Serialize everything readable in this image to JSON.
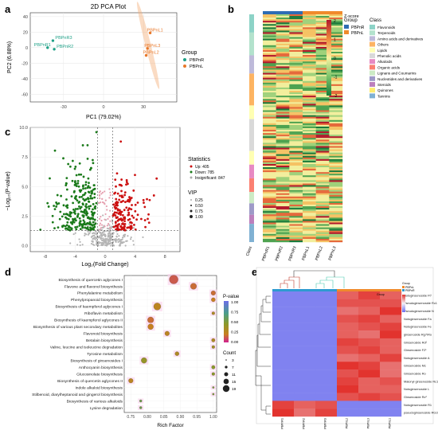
{
  "panels": {
    "a": "a",
    "b": "b",
    "c": "c",
    "d": "d",
    "e": "e"
  },
  "pca": {
    "title": "2D PCA Plot",
    "xlabel": "PC1 (79.02%)",
    "ylabel": "PC2 (6.88%)",
    "legend_title": "Group",
    "groups": [
      {
        "name": "PBPnR",
        "color": "#1fa187"
      },
      {
        "name": "PBPnL",
        "color": "#e8782a"
      }
    ],
    "x_ticks": [
      "-30",
      "0",
      "30"
    ],
    "y_ticks": [
      "40",
      "20",
      "0",
      "-20",
      "-40",
      "-60"
    ],
    "points": [
      {
        "label": "PBPnR3",
        "x": -38,
        "y": 9,
        "group": 0
      },
      {
        "label": "PBPnR1",
        "x": -42,
        "y": 0,
        "group": 0
      },
      {
        "label": "PBPnR2",
        "x": -37,
        "y": -2,
        "group": 0
      },
      {
        "label": "PBPnL1",
        "x": 35,
        "y": 19,
        "group": 1
      },
      {
        "label": "PBPnL3",
        "x": 33,
        "y": -1,
        "group": 1
      },
      {
        "label": "PBPnL2",
        "x": 32,
        "y": -10,
        "group": 1
      }
    ]
  },
  "heatmap": {
    "group_title": "Group",
    "groups": [
      {
        "name": "PBPnR",
        "color": "#2e6db4"
      },
      {
        "name": "PBPnL",
        "color": "#f08a2c"
      }
    ],
    "zscore_title": "Z-score",
    "zscore_ticks": [
      "2",
      "1",
      "0",
      "-1",
      "-2"
    ],
    "class_title": "Class",
    "classes": [
      {
        "name": "Flavonoids",
        "color": "#8dd3c7"
      },
      {
        "name": "Terpenoids",
        "color": "#b3e2cd"
      },
      {
        "name": "Amino acids and derivatives",
        "color": "#bebada"
      },
      {
        "name": "Others",
        "color": "#fdb462"
      },
      {
        "name": "Lipids",
        "color": "#ffffb3"
      },
      {
        "name": "Phenolic acids",
        "color": "#d9d9d9"
      },
      {
        "name": "Alkaloids",
        "color": "#e78ac3"
      },
      {
        "name": "Organic acids",
        "color": "#fb8072"
      },
      {
        "name": "Lignans and Coumarins",
        "color": "#ccebc5"
      },
      {
        "name": "Nucleotides and derivatives",
        "color": "#9e9ac8"
      },
      {
        "name": "Steroids",
        "color": "#bc80bd"
      },
      {
        "name": "Quinones",
        "color": "#ffed6f"
      },
      {
        "name": "Tannins",
        "color": "#80b1d3"
      }
    ],
    "col_labels": [
      "Class",
      "PBPnR1",
      "PBPnR2",
      "PBPnR3",
      "PBPnL1",
      "PBPnL2",
      "PBPnL3"
    ]
  },
  "volcano": {
    "xlabel": "Log₂(Fold Change)",
    "ylabel": "−Log₁₀(P-value)",
    "x_ticks": [
      "-8",
      "-4",
      "0",
      "4",
      "8"
    ],
    "y_ticks": [
      "10.0",
      "7.5",
      "5.0",
      "2.5",
      "0.0"
    ],
    "stats_title": "Statistics",
    "stats": [
      {
        "label": "Up: 405",
        "color": "#cc1111"
      },
      {
        "label": "Down: 785",
        "color": "#1a7a1a"
      },
      {
        "label": "Insignificant: 847",
        "color": "#aaaaaa"
      }
    ],
    "vip_title": "VIP",
    "vip": [
      "0.25",
      "0.50",
      "0.75",
      "1.00"
    ]
  },
  "chart_data": [
    {
      "type": "scatter",
      "title": "2D PCA Plot",
      "xlabel": "PC1 (79.02%)",
      "ylabel": "PC2 (6.88%)",
      "xlim": [
        -55,
        55
      ],
      "ylim": [
        -70,
        45
      ],
      "series": [
        {
          "name": "PBPnR",
          "x": [
            -38,
            -42,
            -37
          ],
          "y": [
            9,
            0,
            -2
          ]
        },
        {
          "name": "PBPnL",
          "x": [
            35,
            33,
            32
          ],
          "y": [
            19,
            -1,
            -10
          ]
        }
      ]
    },
    {
      "type": "scatter",
      "xlabel": "Log₂(Fold Change)",
      "ylabel": "−Log₁₀(P-value)",
      "xlim": [
        -10,
        10
      ],
      "ylim": [
        -0.5,
        10
      ],
      "thresholds": {
        "x": [
          -1,
          1
        ],
        "y": 1.3
      },
      "counts": {
        "up": 405,
        "down": 785,
        "insignificant": 847
      }
    },
    {
      "type": "scatter",
      "xlabel": "Rich Factor",
      "x_ticks": [
        "0.75",
        "0.80",
        "0.85",
        "0.90",
        "0.95",
        "1.00"
      ],
      "xlim": [
        0.73,
        1.01
      ],
      "pvalue_title": "P-value",
      "pvalue_ticks": [
        "1.00",
        "0.75",
        "0.50",
        "0.25",
        "0.00"
      ],
      "count_title": "Count",
      "count_ticks": [
        "3",
        "7",
        "11",
        "15",
        "19"
      ],
      "categories": [
        "Biosynthesis of quercetin aglycones I",
        "Flavone and flavonol biosynthesis",
        "Phenylalanine metabolism",
        "Phenylpropanoid biosynthesis",
        "Biosynthesis of kaempferol aglycones I",
        "Riboflavin metabolism",
        "Biosynthesis of kaempferol aglycones II",
        "Biosynthesis of various plant secondary metabolites",
        "Flavonoid biosynthesis",
        "Betalain biosynthesis",
        "Valine, leucine and isoleucine degradation",
        "Tyrosine metabolism",
        "Biosynthesis of ginsenosides I",
        "Anthocyanin biosynthesis",
        "Glucosinolate biosynthesis",
        "Biosynthesis of quercetin aglycones II",
        "Indole alkaloid biosynthesis",
        "Stilbenoid, diarylheptanoid and gingerol biosynthesis",
        "Biosynthesis of various alkaloids",
        "Lysine degradation"
      ],
      "rich": [
        0.88,
        0.94,
        1.0,
        1.0,
        0.83,
        1.0,
        0.81,
        0.81,
        0.86,
        1.0,
        1.0,
        0.89,
        0.79,
        1.0,
        1.0,
        0.75,
        1.0,
        1.0,
        0.78,
        0.78
      ],
      "count": [
        14,
        9,
        6,
        5,
        11,
        3,
        9,
        8,
        6,
        4,
        3,
        5,
        8,
        4,
        3,
        6,
        1,
        1,
        2,
        2
      ],
      "pvalue": [
        0.15,
        0.2,
        0.2,
        0.25,
        0.3,
        0.35,
        0.2,
        0.25,
        0.3,
        0.35,
        0.4,
        0.35,
        0.45,
        0.5,
        0.5,
        0.3,
        0.55,
        0.55,
        0.6,
        0.6
      ]
    }
  ],
  "clustermap": {
    "rows": [
      "Notoginsenoside Ft¹",
      "Pseudoginsenoside Rc1",
      "Pseudoginsenoside N",
      "Notoginsenoside Fa",
      "Notoginsenoside Fe",
      "ginsenoside Rg7/Ro",
      "Ginsenoside Rd²",
      "Ginsenoside F2¹",
      "Notoginsenoside A",
      "Ginsenoside Mc",
      "Ginsenoside Ro",
      "Malonyl ginsenoside Rc1",
      "Notoginsenoside L",
      "Ginsenoside Rc²",
      "Notoginsenoside R1",
      "pseudoginsenoside RG3"
    ],
    "cols": [
      "PBPnR1",
      "PBPnR2",
      "PBPnR3",
      "PBPnL2",
      "PBPnL3",
      "PBPnL1"
    ],
    "legend_title": "Group",
    "legend_items": [
      "PBPnL",
      "PBPnR"
    ],
    "values": [
      [
        -1,
        -1,
        -1,
        0.9,
        1.1,
        0.9
      ],
      [
        -1,
        -1,
        -1,
        1.0,
        1.0,
        1.0
      ],
      [
        -1,
        -1,
        -1,
        0.8,
        0.9,
        1.2
      ],
      [
        -1,
        -1,
        -1,
        1.0,
        1.1,
        0.9
      ],
      [
        -1,
        -1,
        -1,
        0.9,
        1.0,
        1.1
      ],
      [
        -1,
        -1,
        -1,
        0.9,
        0.8,
        1.2
      ],
      [
        -1,
        -1,
        -1,
        1.1,
        1.0,
        0.9
      ],
      [
        -1,
        -1,
        -1,
        1.0,
        1.1,
        0.9
      ],
      [
        -1,
        -1,
        -1,
        0.8,
        0.9,
        1.1
      ],
      [
        -1,
        -1,
        -1,
        1.2,
        1.1,
        0.8
      ],
      [
        -1,
        -1,
        -1,
        1.0,
        1.2,
        0.8
      ],
      [
        -1,
        -1,
        -1,
        1.1,
        0.9,
        1.0
      ],
      [
        -1,
        -1,
        -1,
        1.2,
        0.9,
        0.9
      ],
      [
        -1,
        -1,
        -1,
        1.0,
        1.1,
        1.0
      ],
      [
        1.1,
        0.9,
        1.0,
        -1,
        -1,
        -1
      ],
      [
        1.2,
        0.8,
        1.1,
        -1,
        -1,
        -1
      ]
    ]
  }
}
